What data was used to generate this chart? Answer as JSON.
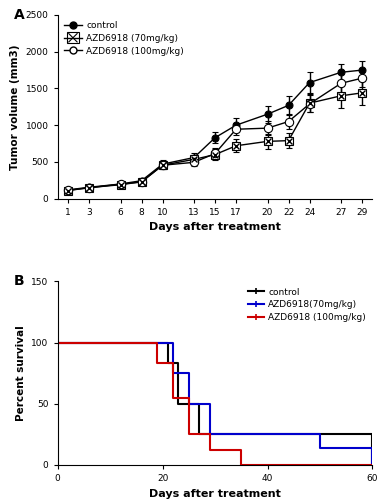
{
  "panel_a": {
    "days": [
      1,
      3,
      6,
      8,
      10,
      13,
      15,
      17,
      20,
      22,
      24,
      27,
      29
    ],
    "control_mean": [
      120,
      155,
      200,
      245,
      470,
      560,
      830,
      1000,
      1150,
      1270,
      1580,
      1720,
      1750
    ],
    "control_err": [
      15,
      20,
      25,
      35,
      50,
      55,
      75,
      95,
      115,
      125,
      145,
      115,
      125
    ],
    "azd70_mean": [
      110,
      150,
      190,
      230,
      455,
      535,
      600,
      720,
      780,
      790,
      1300,
      1400,
      1440
    ],
    "azd70_err": [
      15,
      20,
      25,
      35,
      50,
      55,
      70,
      90,
      100,
      100,
      120,
      170,
      160
    ],
    "azd100_mean": [
      115,
      148,
      198,
      228,
      455,
      495,
      615,
      945,
      960,
      1050,
      1290,
      1570,
      1640
    ],
    "azd100_err": [
      15,
      20,
      25,
      35,
      50,
      55,
      70,
      85,
      95,
      105,
      115,
      125,
      125
    ],
    "ylabel": "Tumor volume (mm3)",
    "xlabel": "Days after treatment",
    "ylim": [
      0,
      2500
    ],
    "yticks": [
      0,
      500,
      1000,
      1500,
      2000,
      2500
    ],
    "xlim_left": 0,
    "xlim_right": 30,
    "legend_control": "control",
    "legend_azd70": "AZD6918 (70mg/kg)",
    "legend_azd100": "AZD6918 (100mg/kg)",
    "panel_label": "A"
  },
  "panel_b": {
    "ylabel": "Percent survival",
    "xlabel": "Days after treatment",
    "ylim": [
      0,
      150
    ],
    "xlim": [
      0,
      60
    ],
    "yticks": [
      0,
      50,
      100,
      150
    ],
    "xticks": [
      0,
      20,
      40,
      60
    ],
    "panel_label": "B",
    "legend_control": "control",
    "legend_azd70": "AZD6918(70mg/kg)",
    "legend_azd100": "AZD6918 (100mg/kg)",
    "control_x": [
      0,
      17,
      21,
      23,
      27,
      60
    ],
    "control_y": [
      100,
      100,
      83,
      50,
      25,
      0
    ],
    "azd70_x": [
      0,
      20,
      22,
      25,
      29,
      50,
      60
    ],
    "azd70_y": [
      100,
      100,
      75,
      50,
      25,
      14,
      0
    ],
    "azd100_x": [
      0,
      19,
      22,
      25,
      29,
      35,
      60
    ],
    "azd100_y": [
      100,
      83,
      55,
      25,
      12,
      0,
      0
    ],
    "control_color": "#000000",
    "azd70_color": "#0000cc",
    "azd100_color": "#cc0000"
  }
}
